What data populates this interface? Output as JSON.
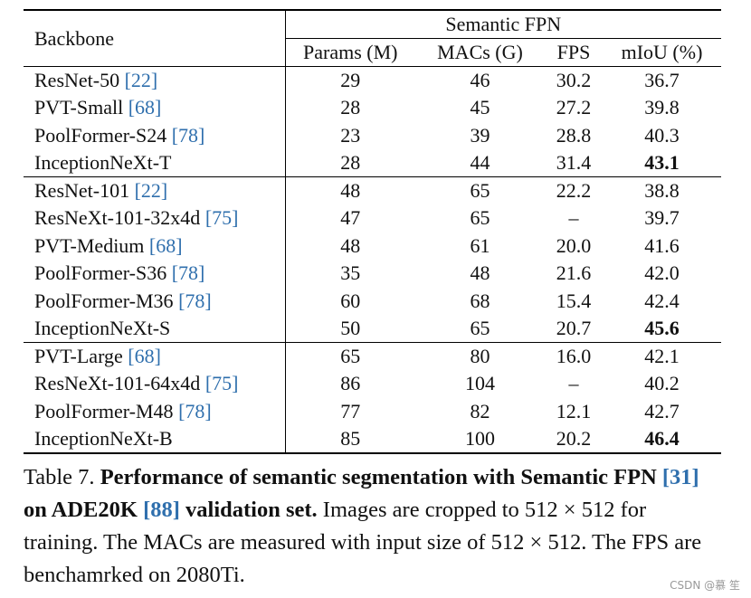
{
  "table": {
    "group_header": "Semantic FPN",
    "backbone_header": "Backbone",
    "columns": [
      "Params (M)",
      "MACs (G)",
      "FPS",
      "mIoU (%)"
    ],
    "groups": [
      [
        {
          "name": "ResNet-50",
          "cite": "[22]",
          "params": "29",
          "macs": "46",
          "fps": "30.2",
          "miou": "36.7",
          "best": false
        },
        {
          "name": "PVT-Small",
          "cite": "[68]",
          "params": "28",
          "macs": "45",
          "fps": "27.2",
          "miou": "39.8",
          "best": false
        },
        {
          "name": "PoolFormer-S24",
          "cite": "[78]",
          "params": "23",
          "macs": "39",
          "fps": "28.8",
          "miou": "40.3",
          "best": false
        },
        {
          "name": "InceptionNeXt-T",
          "cite": "",
          "params": "28",
          "macs": "44",
          "fps": "31.4",
          "miou": "43.1",
          "best": true
        }
      ],
      [
        {
          "name": "ResNet-101",
          "cite": "[22]",
          "params": "48",
          "macs": "65",
          "fps": "22.2",
          "miou": "38.8",
          "best": false
        },
        {
          "name": "ResNeXt-101-32x4d",
          "cite": "[75]",
          "params": "47",
          "macs": "65",
          "fps": "–",
          "miou": "39.7",
          "best": false
        },
        {
          "name": "PVT-Medium",
          "cite": "[68]",
          "params": "48",
          "macs": "61",
          "fps": "20.0",
          "miou": "41.6",
          "best": false
        },
        {
          "name": "PoolFormer-S36",
          "cite": "[78]",
          "params": "35",
          "macs": "48",
          "fps": "21.6",
          "miou": "42.0",
          "best": false
        },
        {
          "name": "PoolFormer-M36",
          "cite": "[78]",
          "params": "60",
          "macs": "68",
          "fps": "15.4",
          "miou": "42.4",
          "best": false
        },
        {
          "name": "InceptionNeXt-S",
          "cite": "",
          "params": "50",
          "macs": "65",
          "fps": "20.7",
          "miou": "45.6",
          "best": true
        }
      ],
      [
        {
          "name": "PVT-Large",
          "cite": "[68]",
          "params": "65",
          "macs": "80",
          "fps": "16.0",
          "miou": "42.1",
          "best": false
        },
        {
          "name": "ResNeXt-101-64x4d",
          "cite": "[75]",
          "params": "86",
          "macs": "104",
          "fps": "–",
          "miou": "40.2",
          "best": false
        },
        {
          "name": "PoolFormer-M48",
          "cite": "[78]",
          "params": "77",
          "macs": "82",
          "fps": "12.1",
          "miou": "42.7",
          "best": false
        },
        {
          "name": "InceptionNeXt-B",
          "cite": "",
          "params": "85",
          "macs": "100",
          "fps": "20.2",
          "miou": "46.4",
          "best": true
        }
      ]
    ]
  },
  "caption": {
    "label": "Table 7.",
    "bold_a": "Performance of semantic segmentation with Semantic FPN",
    "cite_a": "[31]",
    "bold_b": "on ADE20K",
    "cite_b": "[88]",
    "bold_c": "validation set.",
    "rest": "Images are cropped to 512 × 512 for training.  The MACs are measured with input size of 512 × 512. The FPS are benchamrked on 2080Ti."
  },
  "watermark": "CSDN @慕 笙",
  "colors": {
    "cite": "#2f6fad",
    "text": "#111111"
  }
}
